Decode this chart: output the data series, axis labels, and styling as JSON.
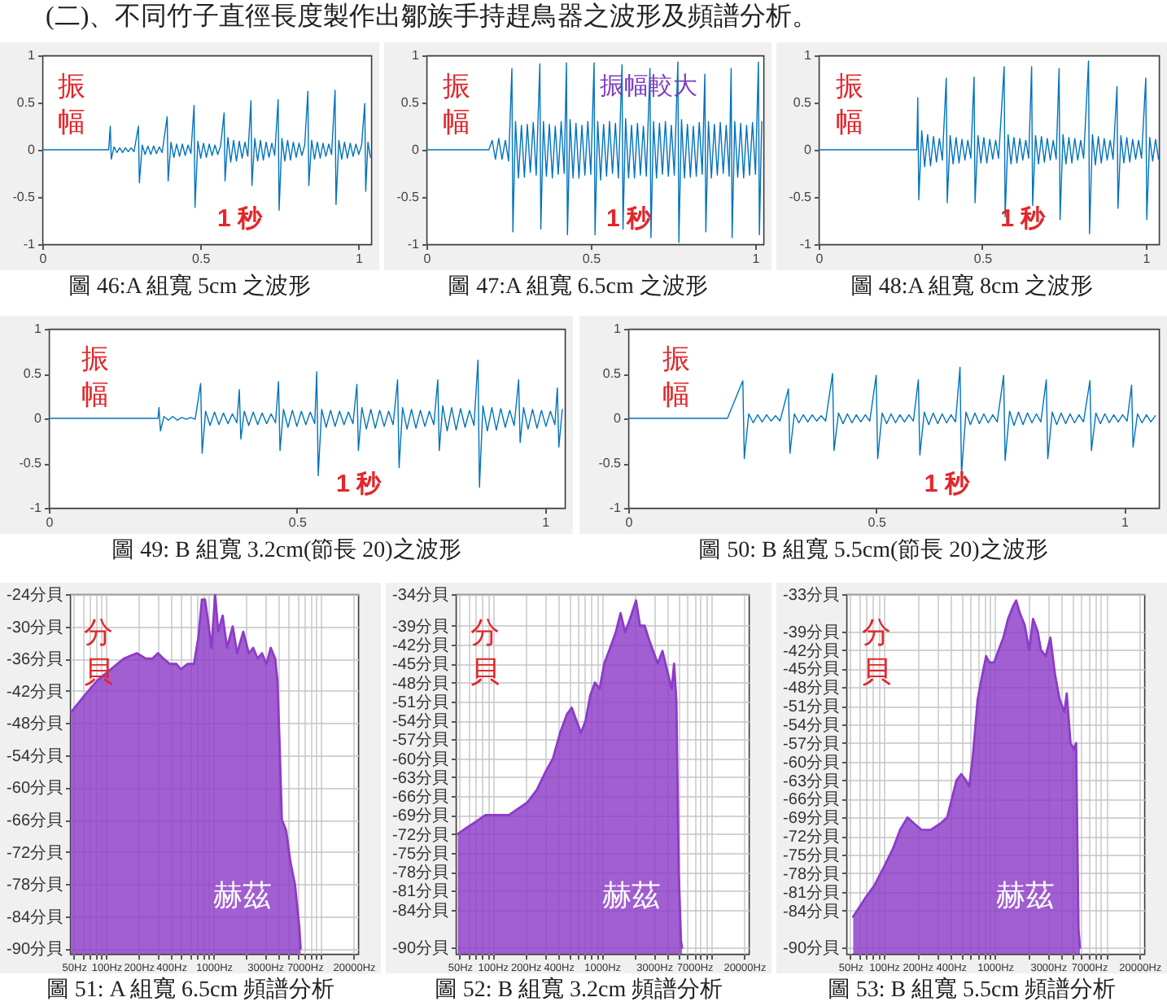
{
  "chart_data": [
    {
      "type": "other",
      "title": "(二)、不同竹子直徑長度製作出鄒族手持趕鳥器之波形及頻譜分析。"
    },
    {
      "type": "line",
      "title": "圖 46:A 組寬 5cm 之波形",
      "xlabel": "1 秒",
      "ylabel": "振幅",
      "color": "#0072bd",
      "xlim": [
        0,
        1.04
      ],
      "ylim": [
        -1,
        1
      ],
      "xticks": [
        0,
        0.5,
        1
      ],
      "yticks": [
        -1,
        -0.5,
        0,
        0.5,
        1
      ],
      "x": [
        0,
        0.21,
        0.215,
        0.218,
        0.227,
        0.236,
        0.245,
        0.254,
        0.263,
        0.272,
        0.281,
        0.29,
        0.304,
        0.307,
        0.316,
        0.325,
        0.334,
        0.343,
        0.352,
        0.361,
        0.37,
        0.379,
        0.395,
        0.398,
        0.407,
        0.416,
        0.425,
        0.434,
        0.443,
        0.452,
        0.461,
        0.47,
        0.48,
        0.483,
        0.492,
        0.501,
        0.51,
        0.519,
        0.528,
        0.537,
        0.546,
        0.555,
        0.564,
        0.575,
        0.578,
        0.587,
        0.596,
        0.605,
        0.614,
        0.623,
        0.632,
        0.641,
        0.65,
        0.66,
        0.663,
        0.672,
        0.681,
        0.69,
        0.699,
        0.708,
        0.717,
        0.726,
        0.735,
        0.746,
        0.749,
        0.758,
        0.767,
        0.776,
        0.785,
        0.794,
        0.803,
        0.812,
        0.821,
        0.83,
        0.84,
        0.843,
        0.852,
        0.861,
        0.87,
        0.879,
        0.888,
        0.897,
        0.906,
        0.915,
        0.926,
        0.929,
        0.938,
        0.947,
        0.956,
        0.965,
        0.974,
        0.983,
        0.992,
        1.001,
        1.01,
        1.02,
        1.023,
        1.03,
        1.038
      ],
      "values": [
        0,
        0,
        0.25,
        -0.1,
        0.03,
        -0.03,
        0.02,
        -0.03,
        0.02,
        -0.02,
        0.02,
        -0.02,
        0.25,
        -0.35,
        0.05,
        -0.05,
        0.04,
        -0.05,
        0.04,
        -0.04,
        0.03,
        -0.03,
        0.35,
        -0.33,
        0.08,
        -0.08,
        0.06,
        -0.07,
        0.06,
        -0.06,
        0.05,
        -0.04,
        0.47,
        -0.61,
        0.09,
        -0.09,
        0.07,
        -0.08,
        0.06,
        -0.06,
        0.05,
        -0.05,
        0.04,
        0.39,
        -0.33,
        0.13,
        -0.13,
        0.1,
        -0.12,
        0.09,
        -0.09,
        0.08,
        -0.07,
        0.52,
        -0.38,
        0.12,
        -0.12,
        0.1,
        -0.11,
        0.08,
        -0.08,
        0.07,
        -0.06,
        0.53,
        -0.64,
        0.12,
        -0.12,
        0.1,
        -0.11,
        0.08,
        -0.08,
        0.07,
        -0.06,
        0.05,
        0.62,
        -0.38,
        0.1,
        -0.1,
        0.08,
        -0.09,
        0.07,
        -0.07,
        0.06,
        -0.05,
        0.63,
        -0.58,
        0.1,
        -0.1,
        0.08,
        -0.09,
        0.07,
        -0.07,
        0.06,
        -0.05,
        0.05,
        0.49,
        -0.44,
        0.08,
        -0.08
      ]
    },
    {
      "type": "line",
      "title": "圖 47:A 組寬 6.5cm 之波形",
      "xlabel": "1 秒",
      "ylabel": "振幅",
      "annotations": [
        "振幅較大"
      ],
      "color": "#0072bd",
      "xlim": [
        0,
        1.025
      ],
      "ylim": [
        -1,
        1
      ],
      "xticks": [
        0,
        0.5,
        1
      ],
      "yticks": [
        -1,
        -0.5,
        0,
        0.5,
        1
      ],
      "x": [
        0,
        0.19,
        0.2,
        0.21,
        0.22,
        0.23,
        0.24,
        0.25,
        0.26,
        0.263,
        0.271,
        0.28,
        0.289,
        0.298,
        0.307,
        0.316,
        0.325,
        0.334,
        0.345,
        0.348,
        0.356,
        0.365,
        0.374,
        0.383,
        0.392,
        0.401,
        0.41,
        0.419,
        0.426,
        0.429,
        0.437,
        0.446,
        0.455,
        0.464,
        0.473,
        0.482,
        0.491,
        0.5,
        0.51,
        0.513,
        0.521,
        0.53,
        0.539,
        0.548,
        0.557,
        0.566,
        0.575,
        0.584,
        0.595,
        0.598,
        0.606,
        0.615,
        0.624,
        0.633,
        0.642,
        0.651,
        0.66,
        0.669,
        0.68,
        0.683,
        0.691,
        0.7,
        0.709,
        0.718,
        0.727,
        0.736,
        0.745,
        0.754,
        0.765,
        0.768,
        0.776,
        0.785,
        0.794,
        0.803,
        0.812,
        0.821,
        0.83,
        0.839,
        0.847,
        0.85,
        0.858,
        0.867,
        0.876,
        0.885,
        0.894,
        0.903,
        0.912,
        0.921,
        0.927,
        0.93,
        0.938,
        0.947,
        0.956,
        0.965,
        0.974,
        0.983,
        0.992,
        1.001,
        1.01,
        1.013,
        1.02
      ],
      "values": [
        0,
        0,
        0.1,
        -0.1,
        0.12,
        -0.1,
        0.1,
        -0.12,
        0.86,
        -0.87,
        0.3,
        -0.3,
        0.26,
        -0.29,
        0.27,
        -0.24,
        0.29,
        -0.27,
        0.91,
        -0.84,
        0.3,
        -0.28,
        0.27,
        -0.3,
        0.25,
        -0.26,
        0.3,
        -0.25,
        0.92,
        -0.9,
        0.32,
        -0.3,
        0.28,
        -0.3,
        0.26,
        -0.27,
        0.3,
        -0.26,
        0.92,
        -0.9,
        0.3,
        -0.32,
        0.27,
        -0.28,
        0.3,
        -0.25,
        0.28,
        -0.3,
        0.9,
        -0.84,
        0.33,
        -0.3,
        0.26,
        -0.3,
        0.28,
        -0.27,
        0.25,
        -0.28,
        0.86,
        -0.93,
        0.3,
        -0.3,
        0.28,
        -0.26,
        0.3,
        -0.28,
        0.26,
        -0.27,
        0.93,
        -0.98,
        0.32,
        -0.3,
        0.27,
        -0.29,
        0.25,
        -0.28,
        0.29,
        -0.26,
        0.8,
        -0.87,
        0.3,
        -0.3,
        0.27,
        -0.27,
        0.29,
        -0.25,
        0.26,
        -0.28,
        0.86,
        -0.93,
        0.3,
        -0.29,
        0.28,
        -0.3,
        0.26,
        -0.27,
        0.29,
        -0.26,
        0.93,
        -0.9,
        0.3
      ]
    },
    {
      "type": "line",
      "title": "圖 48:A 組寬 8cm 之波形",
      "xlabel": "1 秒",
      "ylabel": "振幅",
      "color": "#0072bd",
      "xlim": [
        0,
        1.04
      ],
      "ylim": [
        -1,
        1
      ],
      "xticks": [
        0,
        0.5,
        1
      ],
      "yticks": [
        -1,
        -0.5,
        0,
        0.5,
        1
      ],
      "x": [
        0,
        0.3,
        0.303,
        0.306,
        0.315,
        0.324,
        0.333,
        0.342,
        0.351,
        0.36,
        0.369,
        0.378,
        0.39,
        0.393,
        0.402,
        0.411,
        0.42,
        0.429,
        0.438,
        0.447,
        0.456,
        0.465,
        0.475,
        0.478,
        0.487,
        0.496,
        0.505,
        0.514,
        0.523,
        0.532,
        0.541,
        0.55,
        0.567,
        0.57,
        0.579,
        0.588,
        0.597,
        0.606,
        0.615,
        0.624,
        0.633,
        0.642,
        0.651,
        0.654,
        0.663,
        0.672,
        0.681,
        0.69,
        0.699,
        0.708,
        0.717,
        0.726,
        0.735,
        0.738,
        0.747,
        0.756,
        0.765,
        0.774,
        0.783,
        0.792,
        0.801,
        0.81,
        0.825,
        0.828,
        0.837,
        0.846,
        0.855,
        0.864,
        0.873,
        0.882,
        0.891,
        0.9,
        0.912,
        0.915,
        0.924,
        0.933,
        0.942,
        0.951,
        0.96,
        0.969,
        0.978,
        0.987,
        1.0,
        1.003,
        1.012,
        1.021,
        1.03,
        1.039
      ],
      "values": [
        0,
        0,
        0.55,
        -0.53,
        0.2,
        -0.18,
        0.16,
        -0.17,
        0.14,
        -0.13,
        0.12,
        -0.11,
        0.76,
        -0.56,
        0.15,
        -0.15,
        0.13,
        -0.14,
        0.11,
        -0.11,
        0.1,
        -0.09,
        0.77,
        -0.56,
        0.15,
        -0.14,
        0.13,
        -0.14,
        0.11,
        -0.1,
        0.1,
        -0.09,
        0.88,
        -0.71,
        0.16,
        -0.15,
        0.13,
        -0.14,
        0.12,
        -0.11,
        0.1,
        -0.09,
        0.88,
        -0.59,
        0.15,
        -0.15,
        0.14,
        -0.13,
        0.12,
        -0.11,
        0.1,
        -0.1,
        0.86,
        -0.74,
        0.16,
        -0.15,
        0.13,
        -0.14,
        0.12,
        -0.11,
        0.1,
        -0.09,
        0.94,
        -0.89,
        0.16,
        -0.16,
        0.14,
        -0.14,
        0.12,
        -0.11,
        0.1,
        -0.1,
        0.67,
        -0.62,
        0.15,
        -0.14,
        0.13,
        -0.13,
        0.11,
        -0.1,
        0.1,
        -0.09,
        0.76,
        -0.74,
        0.13,
        -0.12,
        0.11,
        -0.1
      ]
    },
    {
      "type": "line",
      "title": "圖 49: B 組寬 3.2cm(節長 20)之波形",
      "xlabel": "1 秒",
      "ylabel": "振幅",
      "color": "#0072bd",
      "xlim": [
        0,
        1.04
      ],
      "ylim": [
        -1,
        1
      ],
      "xticks": [
        0,
        0.5,
        1
      ],
      "yticks": [
        -1,
        -0.5,
        0,
        0.5,
        1
      ],
      "x": [
        0,
        0.22,
        0.222,
        0.225,
        0.232,
        0.241,
        0.25,
        0.259,
        0.268,
        0.277,
        0.286,
        0.295,
        0.306,
        0.309,
        0.316,
        0.325,
        0.334,
        0.343,
        0.352,
        0.361,
        0.37,
        0.379,
        0.384,
        0.387,
        0.394,
        0.403,
        0.412,
        0.421,
        0.43,
        0.439,
        0.448,
        0.457,
        0.463,
        0.466,
        0.473,
        0.482,
        0.491,
        0.5,
        0.509,
        0.518,
        0.527,
        0.536,
        0.54,
        0.543,
        0.55,
        0.559,
        0.568,
        0.577,
        0.586,
        0.595,
        0.604,
        0.613,
        0.621,
        0.624,
        0.631,
        0.64,
        0.649,
        0.658,
        0.667,
        0.676,
        0.685,
        0.694,
        0.703,
        0.706,
        0.713,
        0.722,
        0.731,
        0.74,
        0.749,
        0.758,
        0.767,
        0.776,
        0.784,
        0.787,
        0.794,
        0.803,
        0.812,
        0.821,
        0.83,
        0.839,
        0.848,
        0.857,
        0.865,
        0.868,
        0.875,
        0.884,
        0.893,
        0.902,
        0.911,
        0.92,
        0.929,
        0.938,
        0.947,
        0.95,
        0.957,
        0.966,
        0.975,
        0.984,
        0.993,
        1.002,
        1.011,
        1.02,
        1.025,
        1.028,
        1.035
      ],
      "values": [
        0,
        0,
        0.12,
        -0.14,
        0.02,
        -0.02,
        0.02,
        -0.02,
        0.01,
        -0.01,
        0.01,
        -0.01,
        0.39,
        -0.39,
        0.08,
        -0.08,
        0.07,
        -0.07,
        0.06,
        -0.06,
        0.05,
        -0.05,
        0.32,
        -0.23,
        0.08,
        -0.08,
        0.07,
        -0.07,
        0.06,
        -0.06,
        0.05,
        -0.05,
        0.41,
        -0.36,
        0.1,
        -0.1,
        0.09,
        -0.09,
        0.08,
        -0.07,
        0.07,
        -0.06,
        0.52,
        -0.64,
        0.1,
        -0.1,
        0.09,
        -0.09,
        0.08,
        -0.07,
        0.07,
        -0.06,
        0.38,
        -0.36,
        0.12,
        -0.12,
        0.1,
        -0.11,
        0.09,
        -0.09,
        0.08,
        -0.07,
        0.43,
        -0.55,
        0.12,
        -0.12,
        0.1,
        -0.11,
        0.09,
        -0.09,
        0.08,
        -0.07,
        0.43,
        -0.36,
        0.14,
        -0.14,
        0.12,
        -0.13,
        0.11,
        -0.1,
        0.09,
        -0.08,
        0.65,
        -0.77,
        0.14,
        -0.14,
        0.12,
        -0.13,
        0.11,
        -0.1,
        0.09,
        -0.08,
        0.43,
        -0.27,
        0.12,
        -0.12,
        0.1,
        -0.11,
        0.09,
        -0.09,
        0.08,
        -0.07,
        0.34,
        -0.32,
        0.1
      ]
    },
    {
      "type": "line",
      "title": "圖 50: B 組寬 5.5cm(節長 20)之波形",
      "xlabel": "1 秒",
      "ylabel": "振幅",
      "color": "#0072bd",
      "xlim": [
        0,
        1.07
      ],
      "ylim": [
        -1,
        1
      ],
      "xticks": [
        0,
        0.5,
        1
      ],
      "yticks": [
        -1,
        -0.5,
        0,
        0.5,
        1
      ],
      "x": [
        0,
        0.2,
        0.231,
        0.234,
        0.243,
        0.252,
        0.261,
        0.27,
        0.279,
        0.288,
        0.297,
        0.306,
        0.323,
        0.326,
        0.335,
        0.344,
        0.353,
        0.362,
        0.371,
        0.38,
        0.389,
        0.398,
        0.412,
        0.415,
        0.424,
        0.433,
        0.442,
        0.451,
        0.46,
        0.469,
        0.478,
        0.487,
        0.5,
        0.503,
        0.512,
        0.521,
        0.53,
        0.539,
        0.548,
        0.557,
        0.566,
        0.575,
        0.585,
        0.588,
        0.597,
        0.606,
        0.615,
        0.624,
        0.633,
        0.642,
        0.651,
        0.66,
        0.669,
        0.672,
        0.681,
        0.69,
        0.699,
        0.708,
        0.717,
        0.726,
        0.735,
        0.744,
        0.757,
        0.76,
        0.769,
        0.778,
        0.787,
        0.796,
        0.805,
        0.814,
        0.823,
        0.832,
        0.843,
        0.846,
        0.855,
        0.864,
        0.873,
        0.882,
        0.891,
        0.9,
        0.909,
        0.918,
        0.931,
        0.934,
        0.943,
        0.952,
        0.961,
        0.97,
        0.979,
        0.988,
        0.997,
        1.006,
        1.015,
        1.018,
        1.027,
        1.036,
        1.045,
        1.054,
        1.063
      ],
      "values": [
        0,
        0,
        0.42,
        -0.45,
        0.05,
        -0.05,
        0.04,
        -0.04,
        0.04,
        -0.03,
        0.03,
        -0.03,
        0.33,
        -0.39,
        0.05,
        -0.05,
        0.04,
        -0.04,
        0.04,
        -0.03,
        0.03,
        -0.03,
        0.5,
        -0.36,
        0.06,
        -0.06,
        0.05,
        -0.05,
        0.04,
        -0.04,
        0.04,
        -0.03,
        0.48,
        -0.45,
        0.06,
        -0.06,
        0.05,
        -0.05,
        0.04,
        -0.04,
        0.04,
        -0.03,
        0.43,
        -0.41,
        0.07,
        -0.07,
        0.06,
        -0.06,
        0.05,
        -0.05,
        0.04,
        -0.04,
        0.57,
        -0.62,
        0.07,
        -0.07,
        0.06,
        -0.06,
        0.05,
        -0.05,
        0.04,
        -0.04,
        0.48,
        -0.47,
        0.08,
        -0.08,
        0.07,
        -0.07,
        0.06,
        -0.05,
        0.05,
        -0.04,
        0.43,
        -0.45,
        0.07,
        -0.07,
        0.06,
        -0.06,
        0.05,
        -0.05,
        0.04,
        -0.04,
        0.42,
        -0.36,
        0.06,
        -0.06,
        0.05,
        -0.05,
        0.04,
        -0.04,
        0.04,
        -0.03,
        0.37,
        -0.32,
        0.05,
        -0.05,
        0.04,
        -0.04,
        0.03
      ]
    },
    {
      "type": "area",
      "title": "圖 51: A 組寬 6.5cm 頻譜分析",
      "xlabel": "赫茲",
      "ylabel": "分貝",
      "log": "x",
      "grid": true,
      "xlim": [
        46,
        22000
      ],
      "ylim": [
        -91,
        -24
      ],
      "xticks": [
        {
          "value": 50,
          "label": "50Hz"
        },
        {
          "value": 60,
          "label": null
        },
        {
          "value": 70,
          "label": null
        },
        {
          "value": 80,
          "label": null
        },
        {
          "value": 90,
          "label": null
        },
        {
          "value": 100,
          "label": "100Hz"
        },
        {
          "value": 200,
          "label": "200Hz"
        },
        {
          "value": 300,
          "label": null
        },
        {
          "value": 400,
          "label": "400Hz"
        },
        {
          "value": 500,
          "label": null
        },
        {
          "value": 600,
          "label": null
        },
        {
          "value": 700,
          "label": null
        },
        {
          "value": 800,
          "label": null
        },
        {
          "value": 900,
          "label": null
        },
        {
          "value": 1000,
          "label": "1000Hz"
        },
        {
          "value": 2000,
          "label": null
        },
        {
          "value": 3000,
          "label": "3000Hz"
        },
        {
          "value": 4000,
          "label": null
        },
        {
          "value": 5000,
          "label": null
        },
        {
          "value": 6000,
          "label": null
        },
        {
          "value": 7000,
          "label": "7000Hz"
        },
        {
          "value": 8000,
          "label": null
        },
        {
          "value": 9000,
          "label": null
        },
        {
          "value": 10000,
          "label": null
        },
        {
          "value": 20000,
          "label": "20000Hz"
        }
      ],
      "yticks": [
        {
          "value": -24,
          "label": "-24分貝"
        },
        {
          "value": -30,
          "label": "-30分貝"
        },
        {
          "value": -36,
          "label": "-36分貝"
        },
        {
          "value": -42,
          "label": "-42分貝"
        },
        {
          "value": -48,
          "label": "-48分貝"
        },
        {
          "value": -54,
          "label": "-54分貝"
        },
        {
          "value": -60,
          "label": "-60分貝"
        },
        {
          "value": -66,
          "label": "-66分貝"
        },
        {
          "value": -72,
          "label": "-72分貝"
        },
        {
          "value": -78,
          "label": "-78分貝"
        },
        {
          "value": -84,
          "label": "-84分貝"
        },
        {
          "value": -90,
          "label": "-90分貝"
        }
      ],
      "x": [
        47,
        62,
        83,
        110,
        146,
        193,
        233,
        268,
        303,
        340,
        391,
        450,
        494,
        569,
        655,
        720,
        776,
        829,
        885,
        954,
        1030,
        1100,
        1210,
        1330,
        1500,
        1650,
        1880,
        2120,
        2330,
        2560,
        2810,
        3090,
        3390,
        3730,
        3910,
        4100,
        4300,
        4710,
        5180,
        5690,
        6250,
        6430
      ],
      "series": [
        {
          "type": "line",
          "color": "#8c3cc8",
          "values": [
            -46,
            -43,
            -40,
            -38,
            -36,
            -35,
            -36,
            -36,
            -35,
            -36,
            -37,
            -37,
            -38,
            -37,
            -37,
            -32,
            -25,
            -25,
            -29,
            -34,
            -24,
            -31,
            -28,
            -34,
            -30,
            -35,
            -31,
            -35,
            -34,
            -36,
            -35,
            -37,
            -34,
            -36,
            -40,
            -52,
            -66,
            -68,
            -74,
            -78,
            -86,
            -90
          ],
          "upper": [
            -46,
            -43,
            -40,
            -38,
            -36,
            -35,
            -36,
            -36,
            -35,
            -36,
            -37,
            -37,
            -38,
            -37,
            -37,
            -32,
            -25,
            -25,
            -29,
            -34,
            -24,
            -31,
            -28,
            -34,
            -30,
            -35,
            -31,
            -35,
            -34,
            -36,
            -35,
            -37,
            -34,
            -36,
            -40,
            -52,
            -66,
            -68,
            -74,
            -78,
            -86,
            -90
          ],
          "lower": [
            -91,
            -91,
            -91,
            -91,
            -91,
            -91,
            -91,
            -91,
            -91,
            -91,
            -91,
            -91,
            -91,
            -91,
            -91,
            -91,
            -91,
            -91,
            -91,
            -91,
            -91,
            -91,
            -91,
            -91,
            -91,
            -91,
            -91,
            -91,
            -91,
            -91,
            -91,
            -91,
            -91,
            -91,
            -91,
            -91,
            -91,
            -91,
            -91,
            -91,
            -91,
            -91
          ]
        }
      ]
    },
    {
      "type": "area",
      "title": "圖 52: B 組寬 3.2cm 頻譜分析",
      "xlabel": "赫茲",
      "ylabel": "分貝",
      "log": "x",
      "grid": true,
      "xlim": [
        46,
        22000
      ],
      "ylim": [
        -91,
        -34
      ],
      "xticks": [
        {
          "value": 50,
          "label": "50Hz"
        },
        {
          "value": 60,
          "label": null
        },
        {
          "value": 70,
          "label": null
        },
        {
          "value": 80,
          "label": null
        },
        {
          "value": 90,
          "label": null
        },
        {
          "value": 100,
          "label": "100Hz"
        },
        {
          "value": 200,
          "label": "200Hz"
        },
        {
          "value": 300,
          "label": null
        },
        {
          "value": 400,
          "label": "400Hz"
        },
        {
          "value": 500,
          "label": null
        },
        {
          "value": 600,
          "label": null
        },
        {
          "value": 700,
          "label": null
        },
        {
          "value": 800,
          "label": null
        },
        {
          "value": 900,
          "label": null
        },
        {
          "value": 1000,
          "label": "1000Hz"
        },
        {
          "value": 2000,
          "label": null
        },
        {
          "value": 3000,
          "label": "3000Hz"
        },
        {
          "value": 4000,
          "label": null
        },
        {
          "value": 5000,
          "label": null
        },
        {
          "value": 6000,
          "label": null
        },
        {
          "value": 7000,
          "label": "7000Hz"
        },
        {
          "value": 8000,
          "label": null
        },
        {
          "value": 9000,
          "label": null
        },
        {
          "value": 10000,
          "label": null
        },
        {
          "value": 20000,
          "label": "20000Hz"
        }
      ],
      "yticks": [
        {
          "value": -34,
          "label": "-34分貝"
        },
        {
          "value": -39,
          "label": "-39分貝"
        },
        {
          "value": -42,
          "label": "-42分貝"
        },
        {
          "value": -45,
          "label": "-45分貝"
        },
        {
          "value": -48,
          "label": "-48分貝"
        },
        {
          "value": -51,
          "label": "-51分貝"
        },
        {
          "value": -54,
          "label": "-54分貝"
        },
        {
          "value": -57,
          "label": "-57分貝"
        },
        {
          "value": -60,
          "label": "-60分貝"
        },
        {
          "value": -63,
          "label": "-63分貝"
        },
        {
          "value": -66,
          "label": "-66分貝"
        },
        {
          "value": -69,
          "label": "-69分貝"
        },
        {
          "value": -72,
          "label": "-72分貝"
        },
        {
          "value": -75,
          "label": "-75分貝"
        },
        {
          "value": -78,
          "label": "-78分貝"
        },
        {
          "value": -81,
          "label": "-81分貝"
        },
        {
          "value": -84,
          "label": "-84分貝"
        },
        {
          "value": -90,
          "label": "-90分貝"
        }
      ],
      "x": [
        48,
        58,
        71,
        86,
        110,
        141,
        171,
        208,
        254,
        308,
        357,
        414,
        480,
        529,
        583,
        644,
        710,
        783,
        863,
        953,
        1050,
        1220,
        1340,
        1480,
        1630,
        1800,
        2050,
        2230,
        2460,
        2670,
        2940,
        3240,
        3580,
        3940,
        4350,
        4570,
        4800,
        5040,
        5290,
        5400
      ],
      "series": [
        {
          "type": "line",
          "color": "#8c3cc8",
          "values": [
            -72,
            -71,
            -70,
            -69,
            -69,
            -69,
            -68,
            -67,
            -65,
            -62,
            -60,
            -56,
            -53,
            -52,
            -54,
            -56,
            -54,
            -50,
            -48,
            -49,
            -45,
            -42,
            -40,
            -37,
            -40,
            -38,
            -35,
            -39,
            -39,
            -41,
            -43,
            -45,
            -43,
            -46,
            -49,
            -45,
            -51,
            -78,
            -89,
            -90
          ],
          "upper": [
            -72,
            -71,
            -70,
            -69,
            -69,
            -69,
            -68,
            -67,
            -65,
            -62,
            -60,
            -56,
            -53,
            -52,
            -54,
            -56,
            -54,
            -50,
            -48,
            -49,
            -45,
            -42,
            -40,
            -37,
            -40,
            -38,
            -35,
            -39,
            -39,
            -41,
            -43,
            -45,
            -43,
            -46,
            -49,
            -45,
            -51,
            -78,
            -89,
            -90
          ],
          "lower": [
            -91,
            -91,
            -91,
            -91,
            -91,
            -91,
            -91,
            -91,
            -91,
            -91,
            -91,
            -91,
            -91,
            -91,
            -91,
            -91,
            -91,
            -91,
            -91,
            -91,
            -91,
            -91,
            -91,
            -91,
            -91,
            -91,
            -91,
            -91,
            -91,
            -91,
            -91,
            -91,
            -91,
            -91,
            -91,
            -91,
            -91,
            -91,
            -91,
            -91
          ]
        }
      ]
    },
    {
      "type": "area",
      "title": "圖 53: B 組寬 5.5cm 頻譜分析",
      "xlabel": "赫茲",
      "ylabel": "分貝",
      "log": "x",
      "grid": true,
      "xlim": [
        46,
        22000
      ],
      "ylim": [
        -91,
        -33
      ],
      "xticks": [
        {
          "value": 50,
          "label": "50Hz"
        },
        {
          "value": 60,
          "label": null
        },
        {
          "value": 70,
          "label": null
        },
        {
          "value": 80,
          "label": null
        },
        {
          "value": 90,
          "label": null
        },
        {
          "value": 100,
          "label": "100Hz"
        },
        {
          "value": 200,
          "label": "200Hz"
        },
        {
          "value": 300,
          "label": null
        },
        {
          "value": 400,
          "label": "400Hz"
        },
        {
          "value": 500,
          "label": null
        },
        {
          "value": 600,
          "label": null
        },
        {
          "value": 700,
          "label": null
        },
        {
          "value": 800,
          "label": null
        },
        {
          "value": 900,
          "label": null
        },
        {
          "value": 1000,
          "label": "1000Hz"
        },
        {
          "value": 2000,
          "label": null
        },
        {
          "value": 3000,
          "label": "3000Hz"
        },
        {
          "value": 4000,
          "label": null
        },
        {
          "value": 5000,
          "label": null
        },
        {
          "value": 6000,
          "label": null
        },
        {
          "value": 7000,
          "label": "7000Hz"
        },
        {
          "value": 8000,
          "label": null
        },
        {
          "value": 9000,
          "label": null
        },
        {
          "value": 10000,
          "label": null
        },
        {
          "value": 20000,
          "label": "20000Hz"
        }
      ],
      "yticks": [
        {
          "value": -33,
          "label": "-33分貝"
        },
        {
          "value": -39,
          "label": "-39分貝"
        },
        {
          "value": -42,
          "label": "-42分貝"
        },
        {
          "value": -45,
          "label": "-45分貝"
        },
        {
          "value": -48,
          "label": "-48分貝"
        },
        {
          "value": -51,
          "label": "-51分貝"
        },
        {
          "value": -54,
          "label": "-54分貝"
        },
        {
          "value": -57,
          "label": "-57分貝"
        },
        {
          "value": -60,
          "label": "-60分貝"
        },
        {
          "value": -63,
          "label": "-63分貝"
        },
        {
          "value": -66,
          "label": "-66分貝"
        },
        {
          "value": -69,
          "label": "-69分貝"
        },
        {
          "value": -72,
          "label": "-72分貝"
        },
        {
          "value": -75,
          "label": "-75分貝"
        },
        {
          "value": -78,
          "label": "-78分貝"
        },
        {
          "value": -81,
          "label": "-81分貝"
        },
        {
          "value": -84,
          "label": "-84分貝"
        },
        {
          "value": -90,
          "label": "-90分貝"
        }
      ],
      "x": [
        53,
        68,
        82,
        100,
        121,
        140,
        163,
        188,
        218,
        264,
        321,
        371,
        409,
        451,
        497,
        547,
        586,
        633,
        698,
        769,
        832,
        890,
        981,
        1080,
        1190,
        1310,
        1450,
        1550,
        1670,
        1850,
        2030,
        2200,
        2420,
        2590,
        2860,
        3150,
        3470,
        3820,
        4210,
        4420,
        4780,
        5120,
        5370,
        5640,
        5810
      ],
      "series": [
        {
          "type": "line",
          "color": "#8c3cc8",
          "values": [
            -85,
            -82,
            -80,
            -77,
            -74,
            -71,
            -69,
            -70,
            -71,
            -71,
            -70,
            -69,
            -66,
            -63,
            -62,
            -63,
            -64,
            -59,
            -50,
            -46,
            -43,
            -44,
            -44,
            -42,
            -40,
            -37,
            -35,
            -34,
            -36,
            -38,
            -42,
            -37,
            -39,
            -42,
            -43,
            -40,
            -46,
            -50,
            -52,
            -49,
            -57,
            -58,
            -57,
            -87,
            -90
          ],
          "upper": [
            -85,
            -82,
            -80,
            -77,
            -74,
            -71,
            -69,
            -70,
            -71,
            -71,
            -70,
            -69,
            -66,
            -63,
            -62,
            -63,
            -64,
            -59,
            -50,
            -46,
            -43,
            -44,
            -44,
            -42,
            -40,
            -37,
            -35,
            -34,
            -36,
            -38,
            -42,
            -37,
            -39,
            -42,
            -43,
            -40,
            -46,
            -50,
            -52,
            -49,
            -57,
            -58,
            -57,
            -87,
            -90
          ],
          "lower": [
            -91,
            -91,
            -91,
            -91,
            -91,
            -91,
            -91,
            -91,
            -91,
            -91,
            -91,
            -91,
            -91,
            -91,
            -91,
            -91,
            -91,
            -91,
            -91,
            -91,
            -91,
            -91,
            -91,
            -91,
            -91,
            -91,
            -91,
            -91,
            -91,
            -91,
            -91,
            -91,
            -91,
            -91,
            -91,
            -91,
            -91,
            -91,
            -91,
            -91,
            -91,
            -91,
            -91,
            -91,
            -91
          ]
        }
      ]
    }
  ]
}
